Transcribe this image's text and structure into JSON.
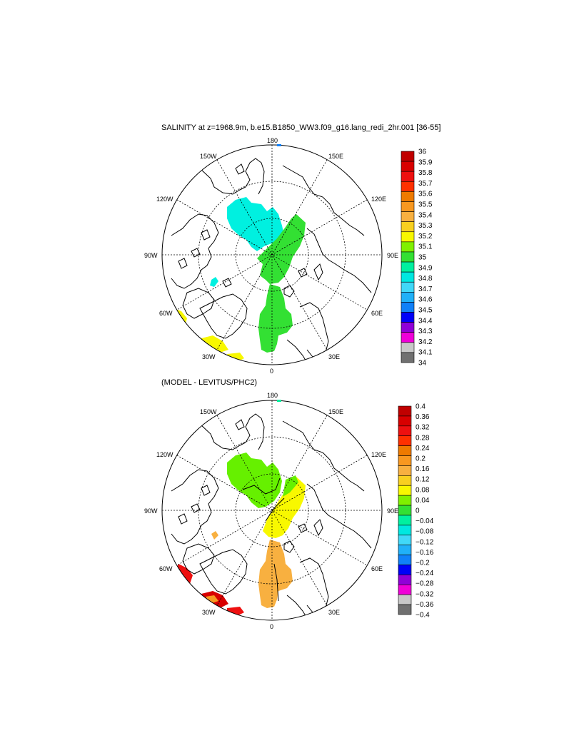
{
  "panel1": {
    "title": "SALINITY at z=1968.9m, b.e15.B1850_WW3.f09_g16.lang_redi_2hr.001 [36-55]",
    "lon_labels": [
      "180",
      "150E",
      "120E",
      "90E",
      "60E",
      "30E",
      "0",
      "30W",
      "60W",
      "90W",
      "120W",
      "150W"
    ],
    "colorbar": {
      "labels": [
        "36",
        "35.9",
        "35.8",
        "35.7",
        "35.6",
        "35.5",
        "35.4",
        "35.3",
        "35.2",
        "35.1",
        "35",
        "34.9",
        "34.8",
        "34.7",
        "34.6",
        "34.5",
        "34.4",
        "34.3",
        "34.2",
        "34.1",
        "34"
      ],
      "colors": [
        "#c00000",
        "#d80000",
        "#ee1010",
        "#ff3000",
        "#ee7a00",
        "#f89820",
        "#f8b040",
        "#f8d020",
        "#f8f800",
        "#80f000",
        "#33e033",
        "#00f0a0",
        "#00e8e0",
        "#40d8f8",
        "#20b0f8",
        "#1080f8",
        "#0000f8",
        "#9000d8",
        "#f000d8",
        "#c8c8c8",
        "#707070"
      ]
    },
    "fields": [
      {
        "name": "pacific-side-cyan",
        "color": "#00f0e0"
      },
      {
        "name": "arctic-central-green",
        "color": "#33e033"
      },
      {
        "name": "atlantic-green",
        "color": "#33e033"
      },
      {
        "name": "labrador-yellow",
        "color": "#f8f800"
      },
      {
        "name": "greenland-sea-yellow",
        "color": "#f8f800"
      }
    ]
  },
  "panel2": {
    "title": "(MODEL - LEVITUS/PHC2)",
    "lon_labels": [
      "180",
      "150E",
      "120E",
      "90E",
      "60E",
      "30E",
      "0",
      "30W",
      "60W",
      "90W",
      "120W",
      "150W"
    ],
    "colorbar": {
      "labels": [
        "0.4",
        "0.36",
        "0.32",
        "0.28",
        "0.24",
        "0.2",
        "0.16",
        "0.12",
        "0.08",
        "0.04",
        "0",
        "−0.04",
        "−0.08",
        "−0.12",
        "−0.16",
        "−0.2",
        "−0.24",
        "−0.28",
        "−0.32",
        "−0.36",
        "−0.4"
      ],
      "colors": [
        "#c00000",
        "#d80000",
        "#ee1010",
        "#ff3000",
        "#ee7a00",
        "#f89820",
        "#f8b040",
        "#f8d020",
        "#f8f800",
        "#80f000",
        "#33e033",
        "#00f0a0",
        "#00e8e0",
        "#40d8f8",
        "#20b0f8",
        "#1080f8",
        "#0000f8",
        "#9000d8",
        "#f000d8",
        "#c8c8c8",
        "#707070"
      ]
    }
  }
}
